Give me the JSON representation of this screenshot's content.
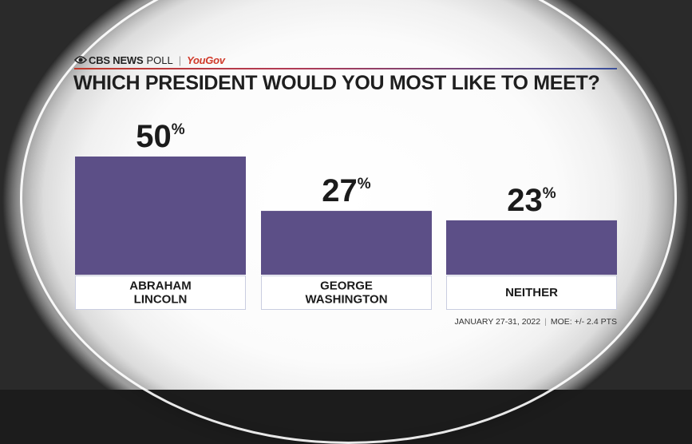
{
  "brand": {
    "network": "CBS NEWS",
    "poll": "POLL",
    "separator": "|",
    "partner": "YouGov"
  },
  "headline": "WHICH PRESIDENT WOULD YOU MOST LIKE TO MEET?",
  "footer": {
    "dates": "JANUARY 27-31, 2022",
    "separator": "|",
    "moe": "MOE: +/- 2.4 PTS"
  },
  "colors": {
    "bar": "#5c4f87",
    "brand_red": "#d03a2a"
  },
  "chart_data": {
    "type": "bar",
    "title": "WHICH PRESIDENT WOULD YOU MOST LIKE TO MEET?",
    "categories": [
      [
        "ABRAHAM",
        "LINCOLN"
      ],
      [
        "GEORGE",
        "WASHINGTON"
      ],
      [
        "NEITHER"
      ]
    ],
    "values": [
      50,
      27,
      23
    ],
    "value_suffix": "%",
    "ylim": [
      0,
      50
    ],
    "grid": false,
    "legend": "none"
  }
}
